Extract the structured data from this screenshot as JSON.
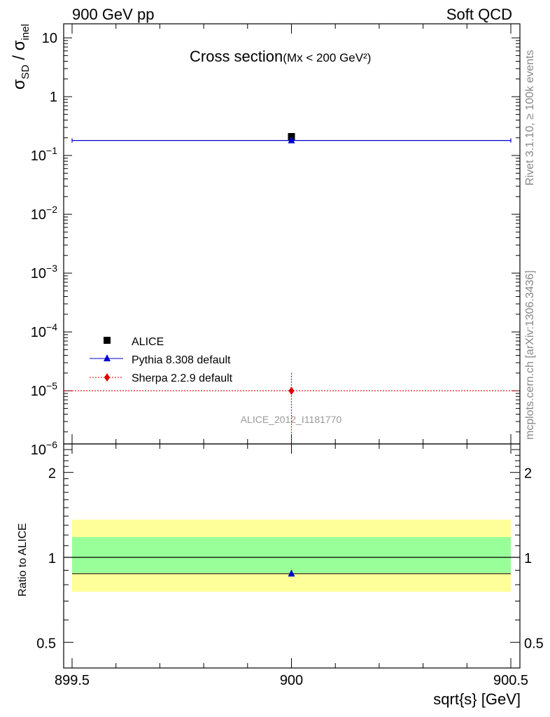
{
  "header": {
    "left": "900 GeV pp",
    "right": "Soft QCD"
  },
  "side_labels": {
    "rivet": "Rivet 3.1.10, ≥ 100k events",
    "mcplots": "mcplots.cern.ch [arXiv:1306.3436]"
  },
  "chart_data": [
    {
      "type": "scatter",
      "title": "Cross section",
      "title_suffix": "(Mx < 200 GeV²)",
      "ylabel": "σSD / σinel",
      "ylabel_parts": {
        "main": "σ",
        "sub1": "SD",
        "sep": " / ",
        "main2": "σ",
        "sub2": "inel"
      },
      "yscale": "log",
      "ylim": [
        1e-06,
        13
      ],
      "xlim": [
        899.5,
        900.5
      ],
      "y_ticks": [
        {
          "value": 1e-06,
          "base": "10",
          "exp": "−6"
        },
        {
          "value": 1e-05,
          "base": "10",
          "exp": "−5"
        },
        {
          "value": 0.0001,
          "base": "10",
          "exp": "−4"
        },
        {
          "value": 0.001,
          "base": "10",
          "exp": "−3"
        },
        {
          "value": 0.01,
          "base": "10",
          "exp": "−2"
        },
        {
          "value": 0.1,
          "base": "10",
          "exp": "−1"
        },
        {
          "value": 1,
          "base": "1",
          "exp": ""
        },
        {
          "value": 10,
          "base": "10",
          "exp": ""
        }
      ],
      "series": [
        {
          "name": "ALICE",
          "color": "#000000",
          "marker": "square",
          "x": [
            900
          ],
          "y": [
            0.21
          ],
          "xerr": [
            0
          ],
          "yerr": [
            0.02
          ]
        },
        {
          "name": "Pythia 8.308 default",
          "color": "#0000cc",
          "marker": "triangle",
          "line": "solid",
          "x": [
            900
          ],
          "y": [
            0.18
          ],
          "xerr": [
            0.5
          ]
        },
        {
          "name": "Sherpa 2.2.9 default",
          "color": "#dd0000",
          "marker": "diamond",
          "line": "dotted",
          "x": [
            900
          ],
          "y": [
            1e-05
          ],
          "xerr": [
            0.5
          ],
          "yerr_low": [
            1e-05
          ],
          "yerr_high": [
            1e-05
          ]
        }
      ],
      "watermark": "ALICE_2012_I1181770",
      "legend_position": "lower-left"
    },
    {
      "type": "scatter",
      "ylabel": "Ratio to ALICE",
      "xlabel": "sqrt{s} [GeV]",
      "xlim": [
        899.5,
        900.5
      ],
      "ylim": [
        0.42,
        2.35
      ],
      "yscale": "log",
      "y_ticks": [
        {
          "value": 0.5,
          "label": "0.5"
        },
        {
          "value": 1,
          "label": "1"
        },
        {
          "value": 2,
          "label": "2"
        }
      ],
      "x_ticks": [
        {
          "value": 899.5,
          "label": "899.5"
        },
        {
          "value": 900,
          "label": "900"
        },
        {
          "value": 900.5,
          "label": "900.5"
        }
      ],
      "bands": [
        {
          "color": "#ffff99",
          "low": 0.755,
          "high": 1.36
        },
        {
          "color": "#99ff99",
          "low": 0.88,
          "high": 1.18
        }
      ],
      "reference": 1.0,
      "series": [
        {
          "name": "Pythia 8.308 default",
          "color": "#0000cc",
          "marker": "triangle",
          "x": [
            900
          ],
          "y": [
            0.875
          ],
          "xerr": [
            0.5
          ]
        }
      ]
    }
  ]
}
